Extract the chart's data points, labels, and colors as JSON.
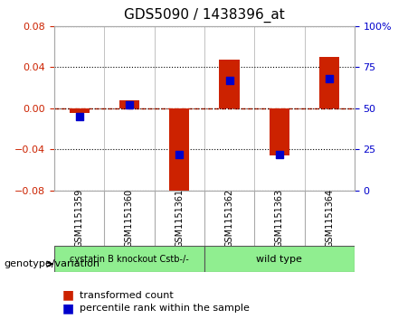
{
  "title": "GDS5090 / 1438396_at",
  "samples": [
    "GSM1151359",
    "GSM1151360",
    "GSM1151361",
    "GSM1151362",
    "GSM1151363",
    "GSM1151364"
  ],
  "transformed_counts": [
    -0.005,
    0.008,
    -0.085,
    0.047,
    -0.046,
    0.05
  ],
  "percentile_ranks": [
    45,
    52,
    22,
    67,
    22,
    68
  ],
  "ylim_left": [
    -0.08,
    0.08
  ],
  "ylim_right": [
    0,
    100
  ],
  "yticks_left": [
    -0.08,
    -0.04,
    0,
    0.04,
    0.08
  ],
  "yticks_right": [
    0,
    25,
    50,
    75,
    100
  ],
  "groups": [
    {
      "label": "cystatin B knockout Cstb-/-",
      "samples": [
        0,
        1,
        2
      ],
      "color": "#90ee90"
    },
    {
      "label": "wild type",
      "samples": [
        3,
        4,
        5
      ],
      "color": "#90ee90"
    }
  ],
  "group_colors": [
    "#90ee90",
    "#90ee90"
  ],
  "bar_color": "#cc2200",
  "dot_color": "#0000cc",
  "bar_width": 0.4,
  "zero_line_color": "#cc2200",
  "grid_color": "#000000",
  "bg_color": "#ffffff",
  "plot_bg": "#ffffff",
  "tick_label_color_left": "#cc2200",
  "tick_label_color_right": "#0000cc",
  "legend_items": [
    "transformed count",
    "percentile rank within the sample"
  ],
  "legend_colors": [
    "#cc2200",
    "#0000cc"
  ],
  "genotype_label": "genotype/variation",
  "group_names": [
    "cystatin B knockout Cstb-/-",
    "wild type"
  ],
  "group_boundaries": [
    2.5
  ]
}
